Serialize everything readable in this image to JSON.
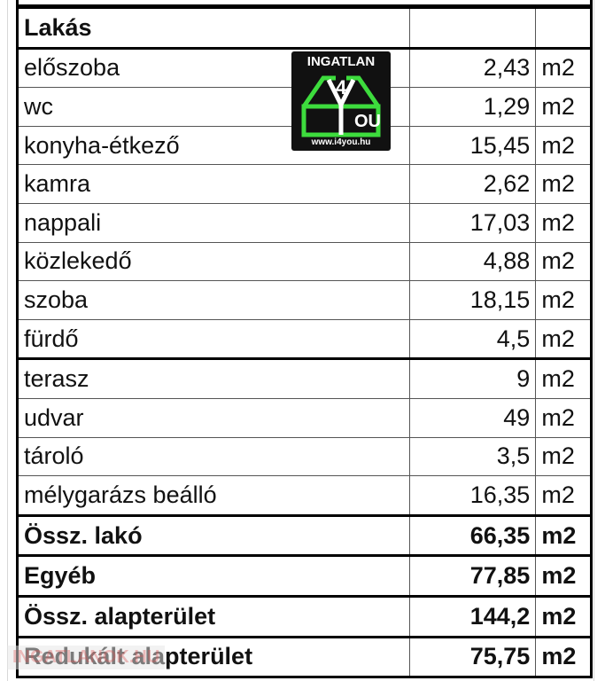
{
  "table": {
    "header": "Lakás",
    "rows": [
      {
        "name": "előszoba",
        "value": "2,43",
        "unit": "m2"
      },
      {
        "name": "wc",
        "value": "1,29",
        "unit": "m2"
      },
      {
        "name": "konyha-étkező",
        "value": "15,45",
        "unit": "m2"
      },
      {
        "name": "kamra",
        "value": "2,62",
        "unit": "m2"
      },
      {
        "name": "nappali",
        "value": "17,03",
        "unit": "m2"
      },
      {
        "name": "közlekedő",
        "value": "4,88",
        "unit": "m2"
      },
      {
        "name": "szoba",
        "value": "18,15",
        "unit": "m2"
      },
      {
        "name": "fürdő",
        "value": "4,5",
        "unit": "m2"
      },
      {
        "name": "terasz",
        "value": "9",
        "unit": "m2"
      },
      {
        "name": "udvar",
        "value": "49",
        "unit": "m2"
      },
      {
        "name": "tároló",
        "value": "3,5",
        "unit": "m2"
      },
      {
        "name": "mélygarázs beálló",
        "value": "16,35",
        "unit": "m2"
      }
    ],
    "totals": [
      {
        "name": "Össz. lakó",
        "value": "66,35",
        "unit": "m2"
      },
      {
        "name": "Egyéb",
        "value": "77,85",
        "unit": "m2"
      },
      {
        "name": "Össz. alapterület",
        "value": "144,2",
        "unit": "m2"
      },
      {
        "name": "Redukált alapterület",
        "value": "75,75",
        "unit": "m2"
      }
    ]
  },
  "logo": {
    "top": "INGATLAN",
    "mid": "4",
    "you": "OU",
    "url": "www.i4you.hu",
    "color": "#3ddc3d"
  },
  "watermark": "INGATLANOK.HU"
}
